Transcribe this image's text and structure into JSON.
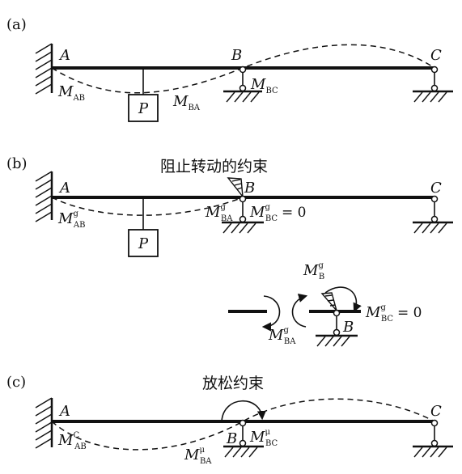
{
  "panels": {
    "a": {
      "tag": "(a)",
      "nodes": {
        "A": "A",
        "B": "B",
        "C": "C"
      },
      "load": "P",
      "moments": {
        "ab": {
          "main": "M",
          "sub": "AB",
          "sup": ""
        },
        "ba": {
          "main": "M",
          "sub": "BA",
          "sup": ""
        },
        "bc": {
          "main": "M",
          "sub": "BC",
          "sup": ""
        }
      }
    },
    "b": {
      "tag": "(b)",
      "caption": "阻止转动的约束",
      "nodes": {
        "A": "A",
        "B": "B",
        "C": "C"
      },
      "load": "P",
      "moments": {
        "ab": {
          "main": "M",
          "sub": "AB",
          "sup": "g"
        },
        "ba": {
          "main": "M",
          "sub": "BA",
          "sup": "g"
        },
        "bc": {
          "main": "M",
          "sub": "BC",
          "sup": "g"
        }
      },
      "bc_eq": "= 0",
      "detail": {
        "moments": {
          "b": {
            "main": "M",
            "sub": "B",
            "sup": "g"
          },
          "ba": {
            "main": "M",
            "sub": "BA",
            "sup": "g"
          },
          "bc": {
            "main": "M",
            "sub": "BC",
            "sup": "g"
          }
        },
        "bc_eq": "= 0",
        "node": "B"
      }
    },
    "c": {
      "tag": "(c)",
      "caption": "放松约束",
      "nodes": {
        "A": "A",
        "B": "B",
        "C": "C"
      },
      "moments": {
        "ab": {
          "main": "M",
          "sub": "AB",
          "sup": "C"
        },
        "ba": {
          "main": "M",
          "sub": "BA",
          "sup": "μ"
        },
        "bc": {
          "main": "M",
          "sub": "BC",
          "sup": "μ"
        }
      }
    }
  }
}
